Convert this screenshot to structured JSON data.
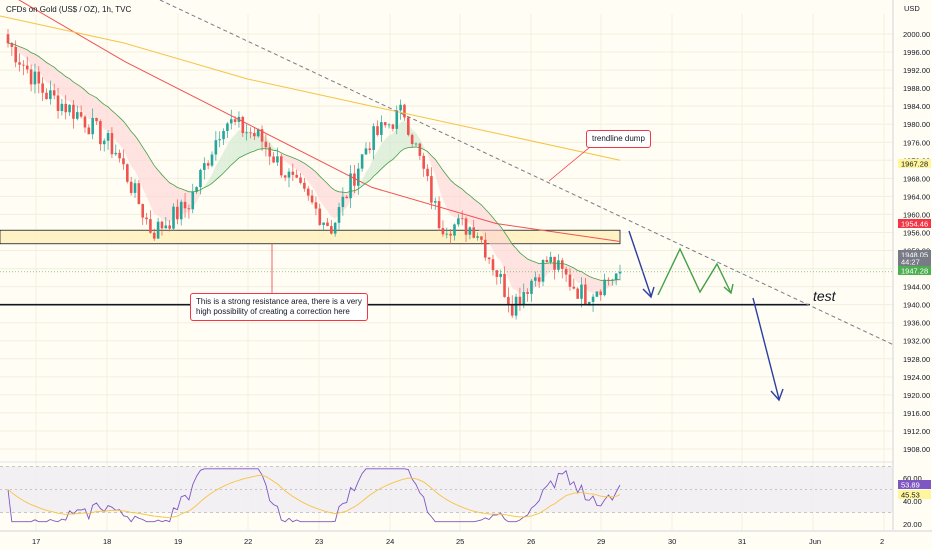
{
  "header": {
    "symbol_title": "CFDs on Gold (US$ / OZ), 1h, TVC"
  },
  "price_axis": {
    "currency": "USD"
  },
  "annotations": {
    "trendline_label": "trendline dump",
    "resistance_note_line1": "This is a strong resistance area, there is a very",
    "resistance_note_line2": "high possibility of creating a correction here",
    "test_label": "test"
  },
  "price_tags": [
    {
      "value": "1967.28",
      "color": "#fff59d",
      "text_color": "#131722"
    },
    {
      "value": "1954.46",
      "color": "#f23645",
      "text_color": "#ffffff"
    },
    {
      "value": "1948.05",
      "color": "#787b86",
      "text_color": "#ffffff"
    },
    {
      "value": "44:27",
      "color": "#787b86",
      "text_color": "#ffffff"
    },
    {
      "value": "1947.28",
      "color": "#4caf50",
      "text_color": "#ffffff"
    }
  ],
  "rsi_tags": [
    {
      "value": "53.89",
      "color": "#7e57c2",
      "text_color": "#ffffff"
    },
    {
      "value": "45.53",
      "color": "#fff59d",
      "text_color": "#131722"
    }
  ],
  "chart_data": {
    "type": "candlestick",
    "title": "CFDs on Gold (US$ / OZ), 1h, TVC",
    "y_ticks": [
      1908,
      1912,
      1916,
      1920,
      1924,
      1928,
      1932,
      1936,
      1940,
      1944,
      1948,
      1952,
      1956,
      1960,
      1964,
      1968,
      1972,
      1976,
      1980,
      1984,
      1988,
      1992,
      1996,
      2000
    ],
    "ylim": [
      1905,
      2003
    ],
    "x_ticks": [
      "17",
      "18",
      "19",
      "22",
      "23",
      "24",
      "25",
      "26",
      "29",
      "30",
      "31",
      "Jun",
      "2"
    ],
    "last_price": 1947.28,
    "resistance_zone": [
      1953.5,
      1956.5
    ],
    "support_line": 1940.0,
    "close_path": [
      {
        "day": "17",
        "close": 1998
      },
      {
        "day": "17",
        "close": 1987
      },
      {
        "day": "18",
        "close": 1982
      },
      {
        "day": "18",
        "close": 1974
      },
      {
        "day": "19",
        "close": 1956
      },
      {
        "day": "19",
        "close": 1962
      },
      {
        "day": "22",
        "close": 1981
      },
      {
        "day": "22",
        "close": 1977
      },
      {
        "day": "23",
        "close": 1966
      },
      {
        "day": "23",
        "close": 1957
      },
      {
        "day": "24",
        "close": 1976
      },
      {
        "day": "24",
        "close": 1983
      },
      {
        "day": "25",
        "close": 1958
      },
      {
        "day": "25",
        "close": 1957
      },
      {
        "day": "26",
        "close": 1940
      },
      {
        "day": "26",
        "close": 1950
      },
      {
        "day": "29",
        "close": 1942
      },
      {
        "day": "29",
        "close": 1947.28
      }
    ],
    "ma_red_path": [
      2010,
      1994,
      1980,
      1966,
      1958,
      1954
    ],
    "ma_yellow_path": [
      2004,
      1998,
      1990,
      1984,
      1978,
      1972
    ],
    "projection_green": [
      1954,
      1940,
      1947,
      1940,
      1945,
      1940
    ],
    "rsi": {
      "y_ticks": [
        20.0,
        40.0,
        60.0
      ],
      "ylim": [
        15,
        65
      ],
      "band": [
        30,
        70
      ],
      "last_rsi": 53.89,
      "last_signal": 45.53
    }
  }
}
